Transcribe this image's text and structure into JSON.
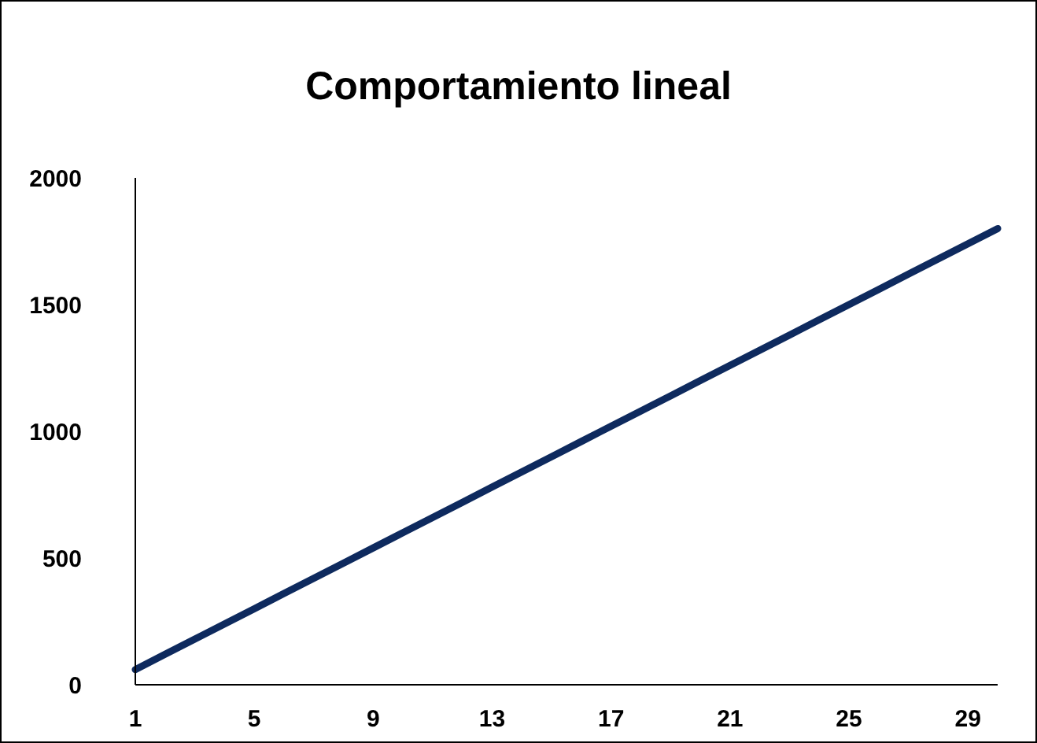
{
  "chart_data": {
    "type": "line",
    "title": "Comportamiento lineal",
    "categories": [
      "1",
      null,
      null,
      null,
      "5",
      null,
      null,
      null,
      "9",
      null,
      null,
      null,
      "13",
      null,
      null,
      null,
      "17",
      null,
      null,
      null,
      "21",
      null,
      null,
      null,
      "25",
      null,
      null,
      null,
      "29",
      null
    ],
    "series": [
      {
        "color": "#0e2a5e",
        "values": [
          60,
          120,
          180,
          240,
          300,
          360,
          420,
          480,
          540,
          600,
          660,
          720,
          780,
          840,
          900,
          960,
          1020,
          1080,
          1140,
          1200,
          1260,
          1320,
          1380,
          1440,
          1500,
          1560,
          1620,
          1680,
          1740,
          1800
        ]
      }
    ],
    "ylim": [
      0,
      2000
    ],
    "yticks": [
      0,
      500,
      1000,
      1500,
      2000
    ],
    "grid": false,
    "legend": false,
    "marker": "none",
    "line_style": "solid"
  }
}
